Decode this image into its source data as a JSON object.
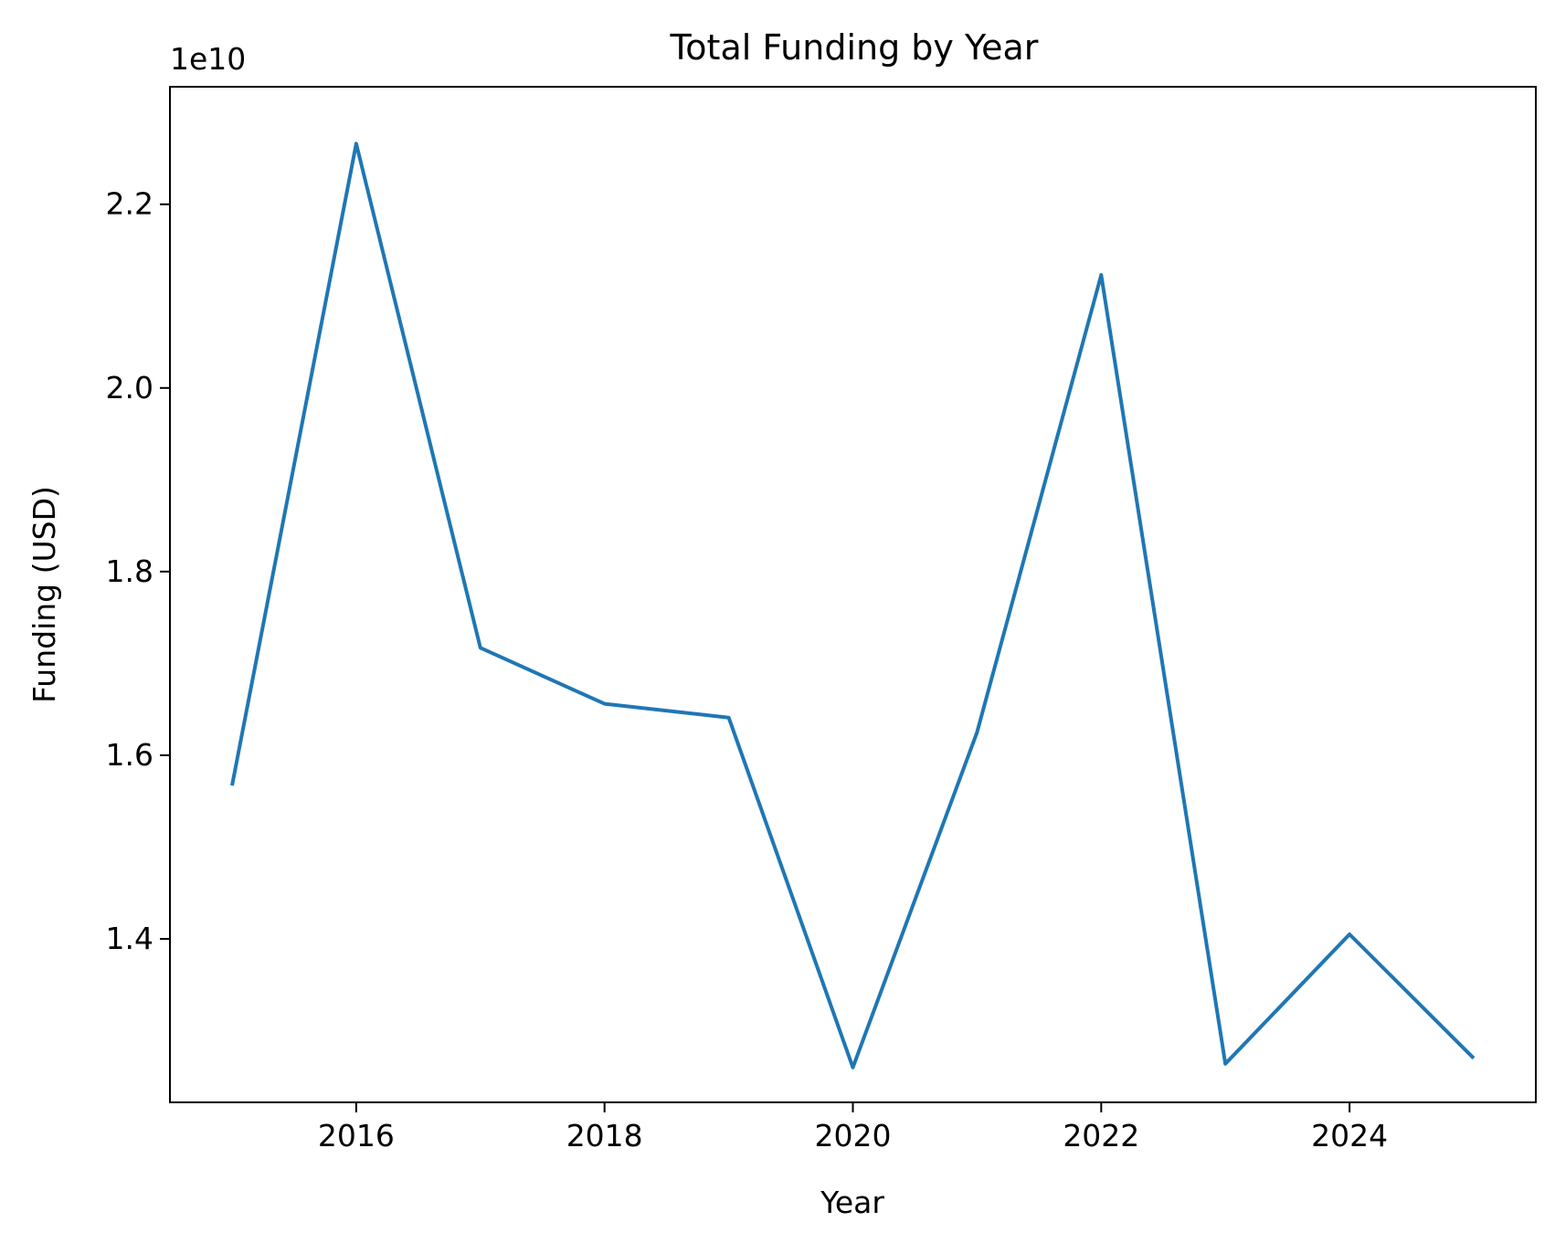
{
  "chart_data": {
    "type": "line",
    "title": "Total Funding by Year",
    "xlabel": "Year",
    "ylabel": "Funding (USD)",
    "y_offset_label": "1e10",
    "xlim": [
      2014.5,
      2025.5
    ],
    "ylim": [
      12.22,
      23.28
    ],
    "x_ticks": [
      2016,
      2018,
      2020,
      2022,
      2024
    ],
    "x_tick_labels": [
      "2016",
      "2018",
      "2020",
      "2022",
      "2024"
    ],
    "y_ticks": [
      14,
      16,
      18,
      20,
      22
    ],
    "y_tick_labels": [
      "1.4",
      "1.6",
      "1.8",
      "2.0",
      "2.2"
    ],
    "y_unit_note": "values in units of 1e9 USD; axis scaled by 1e10",
    "grid": false,
    "series": [
      {
        "color": "#1f77b4",
        "x": [
          2015,
          2016,
          2017,
          2018,
          2019,
          2020,
          2021,
          2022,
          2023,
          2024,
          2025
        ],
        "y": [
          15.67,
          22.66,
          17.17,
          16.56,
          16.41,
          12.6,
          16.25,
          21.23,
          12.64,
          14.05,
          12.7
        ]
      }
    ]
  }
}
